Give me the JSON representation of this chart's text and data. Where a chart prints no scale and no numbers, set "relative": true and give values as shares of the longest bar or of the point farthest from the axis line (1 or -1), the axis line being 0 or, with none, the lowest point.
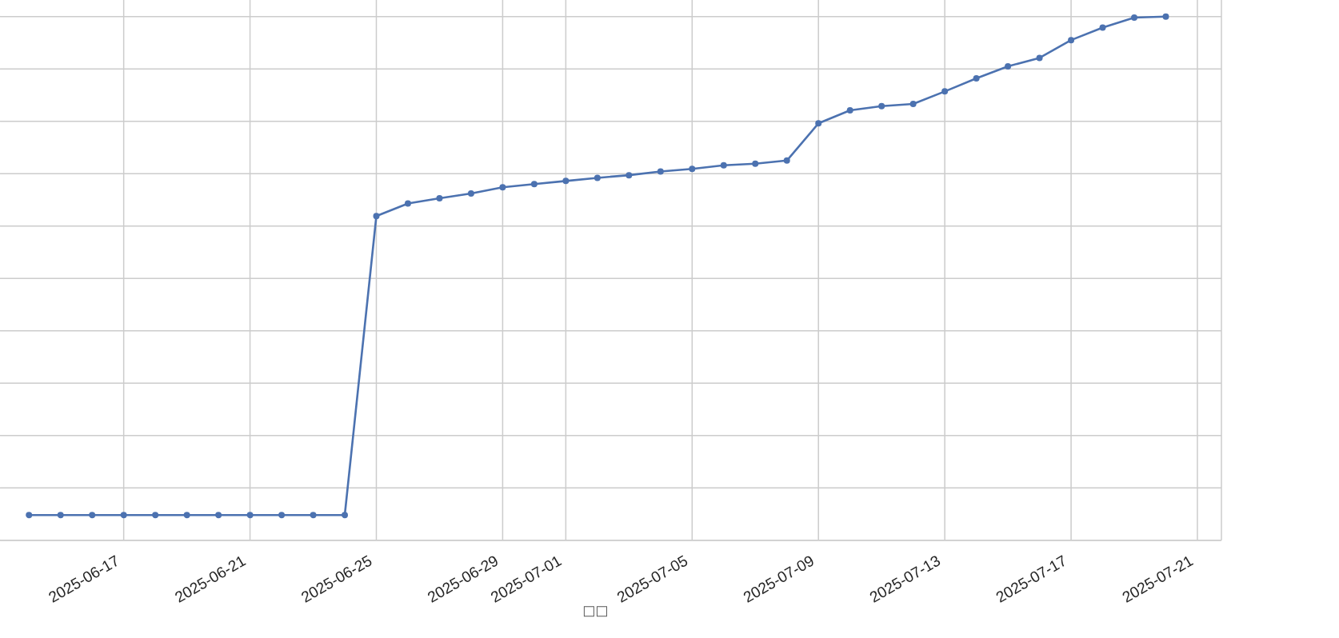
{
  "chart_data": {
    "type": "line",
    "xlabel": "□□",
    "x": [
      "2025-06-14",
      "2025-06-15",
      "2025-06-16",
      "2025-06-17",
      "2025-06-18",
      "2025-06-19",
      "2025-06-20",
      "2025-06-21",
      "2025-06-22",
      "2025-06-23",
      "2025-06-24",
      "2025-06-25",
      "2025-06-26",
      "2025-06-27",
      "2025-06-28",
      "2025-06-29",
      "2025-06-30",
      "2025-07-01",
      "2025-07-02",
      "2025-07-03",
      "2025-07-04",
      "2025-07-05",
      "2025-07-06",
      "2025-07-07",
      "2025-07-08",
      "2025-07-09",
      "2025-07-10",
      "2025-07-11",
      "2025-07-12",
      "2025-07-13",
      "2025-07-14",
      "2025-07-15",
      "2025-07-16",
      "2025-07-17",
      "2025-07-18",
      "2025-07-19",
      "2025-07-20"
    ],
    "values": [
      0.048,
      0.048,
      0.048,
      0.048,
      0.048,
      0.048,
      0.048,
      0.048,
      0.048,
      0.048,
      0.048,
      0.619,
      0.643,
      0.653,
      0.662,
      0.674,
      0.68,
      0.686,
      0.692,
      0.697,
      0.704,
      0.709,
      0.716,
      0.719,
      0.725,
      0.796,
      0.821,
      0.829,
      0.833,
      0.857,
      0.882,
      0.905,
      0.921,
      0.955,
      0.979,
      0.998,
      1
    ],
    "color": "#4c72b0",
    "relative": true,
    "xlim": [
      "2025-06-13T02:00",
      "2025-07-21T18:15"
    ],
    "xticks": [
      "2025-06-17",
      "2025-06-21",
      "2025-06-25",
      "2025-06-29",
      "2025-07-01",
      "2025-07-05",
      "2025-07-09",
      "2025-07-13",
      "2025-07-17",
      "2025-07-21"
    ],
    "grid": true,
    "marker": "circle",
    "line_style": "solid",
    "tick_labels": "x"
  }
}
